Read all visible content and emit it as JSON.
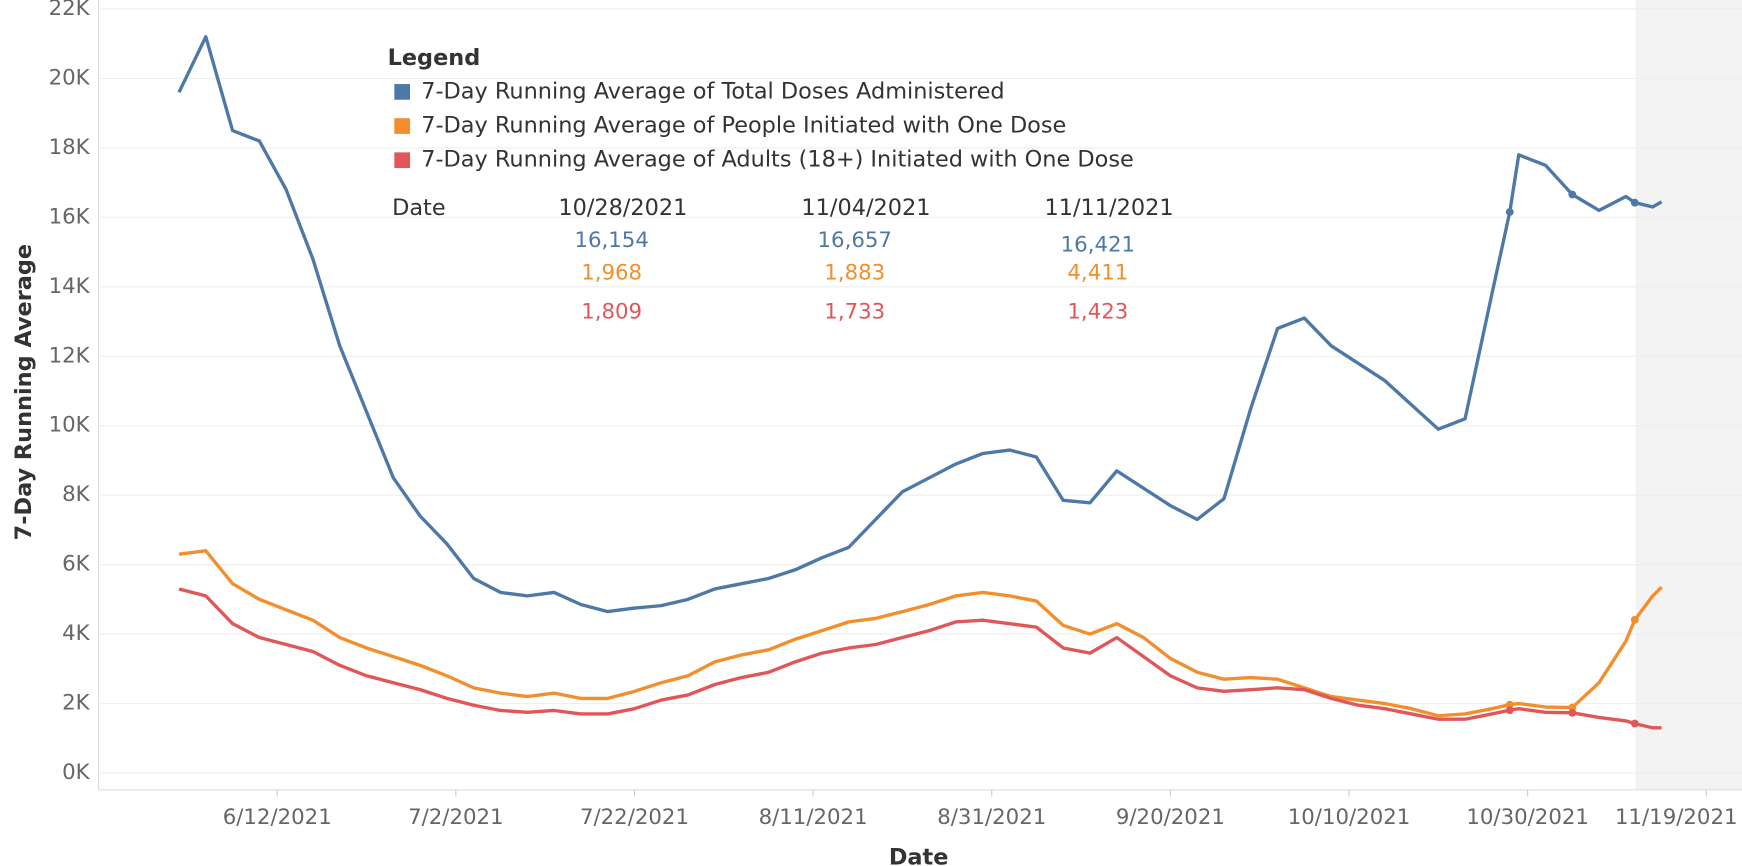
{
  "chart_data": {
    "type": "line",
    "y_label": "7-Day Running Average",
    "x_label": "Date",
    "legend_title": "Legend",
    "legend_position": "top-left",
    "grid": true,
    "x": [
      "6/1/2021",
      "6/4/2021",
      "6/7/2021",
      "6/10/2021",
      "6/13/2021",
      "6/16/2021",
      "6/19/2021",
      "6/22/2021",
      "6/25/2021",
      "6/28/2021",
      "7/1/2021",
      "7/4/2021",
      "7/7/2021",
      "7/10/2021",
      "7/13/2021",
      "7/16/2021",
      "7/19/2021",
      "7/22/2021",
      "7/25/2021",
      "7/28/2021",
      "7/31/2021",
      "8/3/2021",
      "8/6/2021",
      "8/9/2021",
      "8/12/2021",
      "8/15/2021",
      "8/18/2021",
      "8/21/2021",
      "8/24/2021",
      "8/27/2021",
      "8/30/2021",
      "9/2/2021",
      "9/5/2021",
      "9/8/2021",
      "9/11/2021",
      "9/14/2021",
      "9/17/2021",
      "9/20/2021",
      "9/23/2021",
      "9/26/2021",
      "9/29/2021",
      "10/2/2021",
      "10/5/2021",
      "10/8/2021",
      "10/11/2021",
      "10/14/2021",
      "10/17/2021",
      "10/20/2021",
      "10/23/2021",
      "10/26/2021",
      "10/28/2021",
      "10/29/2021",
      "11/1/2021",
      "11/4/2021",
      "11/7/2021",
      "11/10/2021",
      "11/11/2021",
      "11/13/2021",
      "11/14/2021"
    ],
    "series": [
      {
        "name": "7-Day Running Average of Total Doses Administered",
        "color": "#4e79a7",
        "values": [
          19600,
          21200,
          18500,
          18200,
          16800,
          14800,
          12300,
          10400,
          8500,
          7400,
          6600,
          5600,
          5200,
          5100,
          5200,
          4850,
          4650,
          4750,
          4820,
          5000,
          5300,
          5450,
          5600,
          5850,
          6200,
          6500,
          7300,
          8100,
          8500,
          8900,
          9200,
          9300,
          9100,
          7850,
          7780,
          8700,
          8200,
          7700,
          7300,
          7900,
          10500,
          12800,
          13100,
          12300,
          11800,
          11300,
          10600,
          9900,
          10200,
          13800,
          16154,
          17800,
          17500,
          16657,
          16200,
          16600,
          16421,
          16300,
          16450
        ]
      },
      {
        "name": "7-Day Running Average of People Initiated with One Dose",
        "color": "#f28e2b",
        "values": [
          6300,
          6400,
          5450,
          5000,
          4700,
          4400,
          3900,
          3600,
          3350,
          3100,
          2800,
          2450,
          2300,
          2200,
          2300,
          2150,
          2150,
          2350,
          2600,
          2800,
          3200,
          3400,
          3550,
          3850,
          4100,
          4350,
          4450,
          4650,
          4850,
          5100,
          5200,
          5100,
          4950,
          4250,
          4000,
          4300,
          3900,
          3300,
          2900,
          2700,
          2750,
          2700,
          2450,
          2200,
          2100,
          2000,
          1850,
          1650,
          1700,
          1850,
          1968,
          2000,
          1900,
          1883,
          2600,
          3800,
          4411,
          5100,
          5350
        ]
      },
      {
        "name": "7-Day Running Average of Adults (18+) Initiated with One Dose",
        "color": "#e15759",
        "values": [
          5300,
          5100,
          4300,
          3900,
          3700,
          3500,
          3100,
          2800,
          2600,
          2400,
          2150,
          1950,
          1800,
          1750,
          1800,
          1700,
          1700,
          1850,
          2100,
          2250,
          2550,
          2750,
          2900,
          3200,
          3450,
          3600,
          3700,
          3900,
          4100,
          4350,
          4400,
          4300,
          4200,
          3600,
          3450,
          3900,
          3350,
          2800,
          2450,
          2350,
          2400,
          2450,
          2400,
          2150,
          1950,
          1850,
          1700,
          1550,
          1550,
          1700,
          1809,
          1850,
          1750,
          1733,
          1600,
          1500,
          1423,
          1300,
          1300
        ]
      }
    ],
    "xlim": [
      "5/23/2021",
      "11/23/2021"
    ],
    "xticks": [
      "6/12/2021",
      "7/2/2021",
      "7/22/2021",
      "8/11/2021",
      "8/31/2021",
      "9/20/2021",
      "10/10/2021",
      "10/30/2021",
      "11/19/2021"
    ],
    "ylim": [
      0,
      22000
    ],
    "yticks": [
      {
        "value": 0,
        "label": "0K"
      },
      {
        "value": 2000,
        "label": "2K"
      },
      {
        "value": 4000,
        "label": "4K"
      },
      {
        "value": 6000,
        "label": "6K"
      },
      {
        "value": 8000,
        "label": "8K"
      },
      {
        "value": 10000,
        "label": "10K"
      },
      {
        "value": 12000,
        "label": "12K"
      },
      {
        "value": 14000,
        "label": "14K"
      },
      {
        "value": 16000,
        "label": "16K"
      },
      {
        "value": 18000,
        "label": "18K"
      },
      {
        "value": 20000,
        "label": "20K"
      },
      {
        "value": 22000,
        "label": "22K"
      }
    ],
    "tooltip_header": "Date",
    "annotations": [
      {
        "date": "10/28/2021",
        "values": [
          16154,
          1968,
          1809
        ],
        "value_labels": [
          "16,154",
          "1,968",
          "1,809"
        ]
      },
      {
        "date": "11/04/2021",
        "values": [
          16657,
          1883,
          1733
        ],
        "value_labels": [
          "16,657",
          "1,883",
          "1,733"
        ]
      },
      {
        "date": "11/11/2021",
        "values": [
          16421,
          4411,
          1423
        ],
        "value_labels": [
          "16,421",
          "4,411",
          "1,423"
        ]
      }
    ]
  }
}
